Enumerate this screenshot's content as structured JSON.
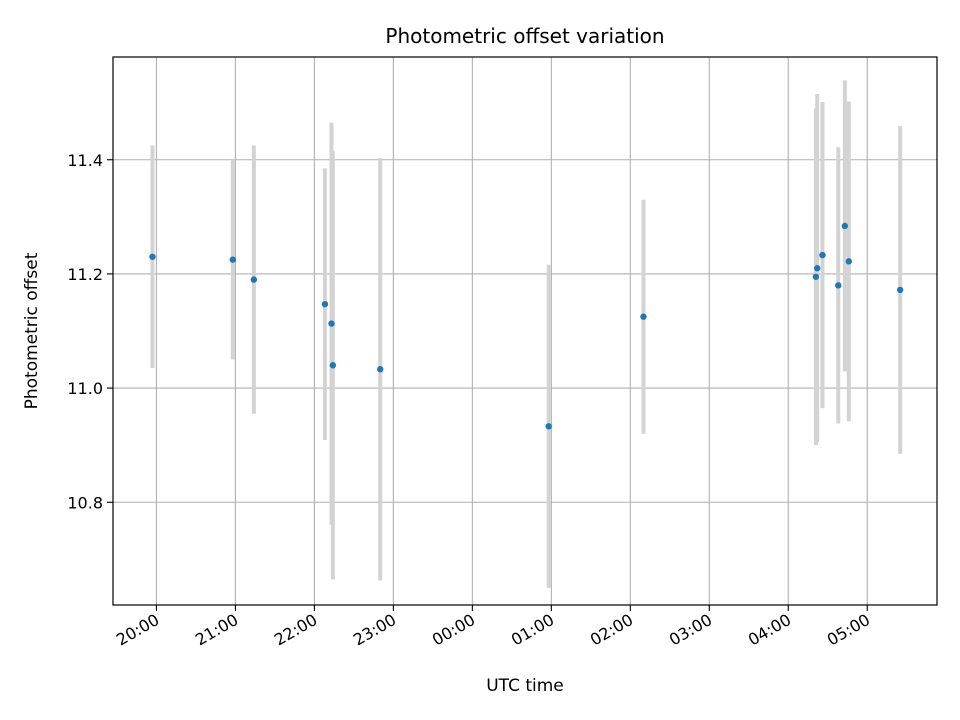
{
  "chart_data": {
    "type": "scatter",
    "title": "Photometric offset variation",
    "xlabel": "UTC time",
    "ylabel": "Photometric offset",
    "x_axis_kind": "time",
    "x_start": "19:27",
    "x_ticks": [
      "20:00",
      "21:00",
      "22:00",
      "23:00",
      "00:00",
      "01:00",
      "02:00",
      "03:00",
      "04:00",
      "05:00"
    ],
    "xlim": [
      "19:27",
      "05:53"
    ],
    "ylim": [
      10.62,
      11.58
    ],
    "y_ticks": [
      "10.8",
      "11.0",
      "11.2",
      "11.4"
    ],
    "grid": true,
    "legend": "none",
    "marker_color": "#1f77b4",
    "errorbar_color": "#d3d3d3",
    "points": [
      {
        "x": "19:57",
        "y": 11.23,
        "err": 0.195
      },
      {
        "x": "20:58",
        "y": 11.225,
        "err": 0.175
      },
      {
        "x": "21:14",
        "y": 11.19,
        "err": 0.235
      },
      {
        "x": "22:08",
        "y": 11.147,
        "err": 0.238
      },
      {
        "x": "22:13",
        "y": 11.113,
        "err": 0.352
      },
      {
        "x": "22:14",
        "y": 11.04,
        "err": 0.375
      },
      {
        "x": "22:50",
        "y": 11.033,
        "err": 0.37
      },
      {
        "x": "00:58",
        "y": 10.933,
        "err": 0.283
      },
      {
        "x": "02:10",
        "y": 11.125,
        "err": 0.205
      },
      {
        "x": "04:21",
        "y": 11.195,
        "err": 0.295
      },
      {
        "x": "04:22",
        "y": 11.21,
        "err": 0.305
      },
      {
        "x": "04:26",
        "y": 11.233,
        "err": 0.268
      },
      {
        "x": "04:38",
        "y": 11.18,
        "err": 0.242
      },
      {
        "x": "04:43",
        "y": 11.284,
        "err": 0.255
      },
      {
        "x": "04:46",
        "y": 11.222,
        "err": 0.28
      },
      {
        "x": "05:25",
        "y": 11.172,
        "err": 0.287
      }
    ]
  }
}
